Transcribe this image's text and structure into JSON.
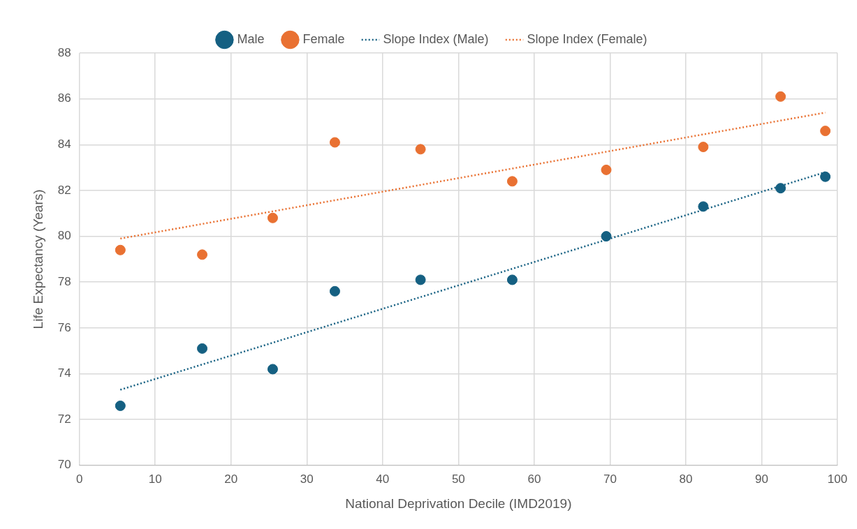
{
  "chart_data": {
    "type": "scatter",
    "xlabel": "National Deprivation Decile (IMD2019)",
    "ylabel": "Life Expectancy (Years)",
    "xlim": [
      0,
      100
    ],
    "xticks": [
      0,
      10,
      20,
      30,
      40,
      50,
      60,
      70,
      80,
      90,
      100
    ],
    "ylim": [
      70,
      88
    ],
    "yticks": [
      70,
      72,
      74,
      76,
      78,
      80,
      82,
      84,
      86,
      88
    ],
    "grid": true,
    "legend": "top",
    "marker": "circle",
    "series": [
      {
        "name": "Male",
        "color": "#156082",
        "x": [
          5.4,
          16.2,
          25.5,
          33.7,
          45.0,
          57.1,
          69.5,
          82.3,
          92.5,
          98.4
        ],
        "values": [
          72.6,
          75.1,
          74.2,
          77.6,
          78.1,
          78.1,
          80.0,
          81.3,
          82.1,
          82.6
        ]
      },
      {
        "name": "Female",
        "color": "#e97132",
        "x": [
          5.4,
          16.2,
          25.5,
          33.7,
          45.0,
          57.1,
          69.5,
          82.3,
          92.5,
          98.4
        ],
        "values": [
          79.4,
          79.2,
          80.8,
          84.1,
          83.8,
          82.4,
          82.9,
          83.9,
          86.1,
          84.6
        ]
      },
      {
        "name": "Slope Index (Male)",
        "type": "line",
        "color": "#156082",
        "line_style": "dotted",
        "marker": "none",
        "x": [
          5.4,
          98.4
        ],
        "values": [
          73.3,
          82.8
        ]
      },
      {
        "name": "Slope Index (Female)",
        "type": "line",
        "color": "#e97132",
        "line_style": "dotted",
        "marker": "none",
        "x": [
          5.4,
          98.4
        ],
        "values": [
          79.9,
          85.4
        ]
      }
    ]
  }
}
